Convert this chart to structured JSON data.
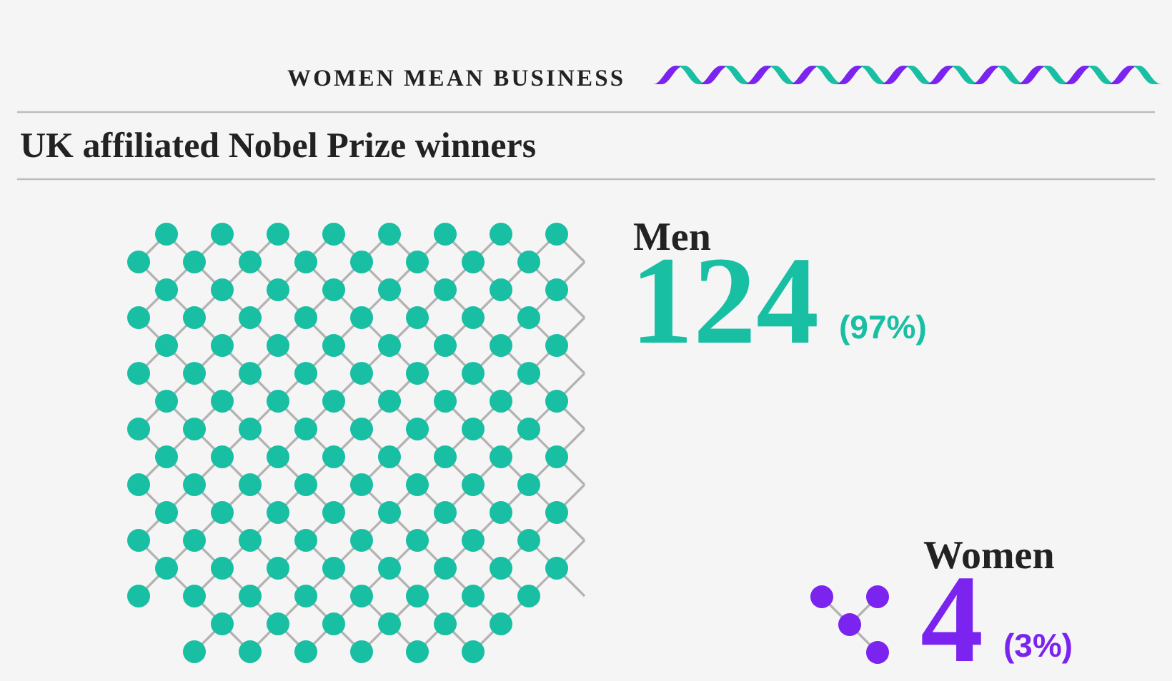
{
  "chart_data": {
    "type": "other",
    "title": "UK affiliated Nobel Prize winners",
    "subtitle": "WOMEN MEAN BUSINESS",
    "categories": [
      "Men",
      "Women"
    ],
    "values": [
      124,
      4
    ],
    "colors": [
      "#19bfa3",
      "#7b23ef"
    ],
    "data_labels": true,
    "annotations": [
      "(97%)",
      "(3%)"
    ]
  }
}
